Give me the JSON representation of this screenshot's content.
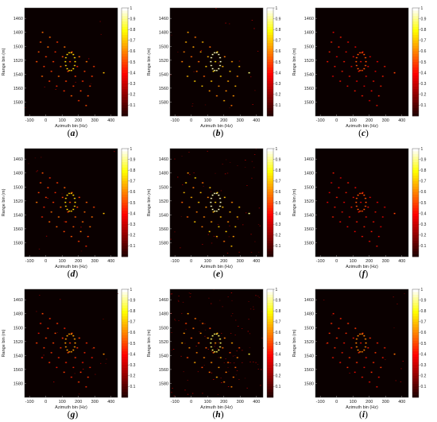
{
  "figure": {
    "background": "#ffffff",
    "plot_background": "#0a0000",
    "colormap": "hot"
  },
  "chart_data": [
    {
      "type": "heatmap",
      "panel": "a",
      "caption_letter": "a",
      "xlabel": "Azimuth bin (Hz)",
      "ylabel": "Range bin (m)",
      "xlim": [
        -130,
        440
      ],
      "ylim": [
        1445,
        1600
      ],
      "xticks": [
        "-100",
        "0",
        "100",
        "200",
        "300",
        "400"
      ],
      "yticks": [
        "1460",
        "1480",
        "1500",
        "1520",
        "1540",
        "1560",
        "1580"
      ],
      "colorbar": {
        "min": 0,
        "max": 1,
        "ticks": [
          "0.1",
          "0.2",
          "0.3",
          "0.4",
          "0.5",
          "0.6",
          "0.7",
          "0.8",
          "0.9",
          "1"
        ]
      },
      "intensity": 0.75,
      "noise": 0.02
    },
    {
      "type": "heatmap",
      "panel": "b",
      "caption_letter": "b",
      "xlabel": "Azimuth bin (Hz)",
      "ylabel": "Range bin (m)",
      "xlim": [
        -130,
        440
      ],
      "ylim": [
        1445,
        1600
      ],
      "xticks": [
        "-100",
        "0",
        "100",
        "200",
        "300",
        "400"
      ],
      "yticks": [
        "1460",
        "1480",
        "1500",
        "1520",
        "1540",
        "1560",
        "1580"
      ],
      "colorbar": {
        "min": 0,
        "max": 1,
        "ticks": [
          "0.1",
          "0.2",
          "0.3",
          "0.4",
          "0.5",
          "0.6",
          "0.7",
          "0.8",
          "0.9",
          "1"
        ]
      },
      "intensity": 1.0,
      "noise": 0.05
    },
    {
      "type": "heatmap",
      "panel": "c",
      "caption_letter": "c",
      "xlabel": "Azimuth bin (Hz)",
      "ylabel": "Range bin (m)",
      "xlim": [
        -130,
        440
      ],
      "ylim": [
        1445,
        1600
      ],
      "xticks": [
        "-100",
        "0",
        "100",
        "200",
        "300",
        "400"
      ],
      "yticks": [
        "1460",
        "1480",
        "1500",
        "1520",
        "1540",
        "1560",
        "1580"
      ],
      "colorbar": {
        "min": 0,
        "max": 1,
        "ticks": [
          "0.1",
          "0.2",
          "0.3",
          "0.4",
          "0.5",
          "0.6",
          "0.7",
          "0.8",
          "0.9",
          "1"
        ]
      },
      "intensity": 0.5,
      "noise": 0.0
    },
    {
      "type": "heatmap",
      "panel": "d",
      "caption_letter": "d",
      "xlabel": "Azimuth bin (Hz)",
      "ylabel": "Range bin (m)",
      "xlim": [
        -130,
        440
      ],
      "ylim": [
        1445,
        1600
      ],
      "xticks": [
        "-100",
        "0",
        "100",
        "200",
        "300",
        "400"
      ],
      "yticks": [
        "1460",
        "1480",
        "1500",
        "1520",
        "1540",
        "1560",
        "1580"
      ],
      "colorbar": {
        "min": 0,
        "max": 1,
        "ticks": [
          "0.1",
          "0.2",
          "0.3",
          "0.4",
          "0.5",
          "0.6",
          "0.7",
          "0.8",
          "0.9",
          "1"
        ]
      },
      "intensity": 0.75,
      "noise": 0.03
    },
    {
      "type": "heatmap",
      "panel": "e",
      "caption_letter": "e",
      "xlabel": "Azimuth bin (Hz)",
      "ylabel": "Range bin (m)",
      "xlim": [
        -130,
        440
      ],
      "ylim": [
        1445,
        1600
      ],
      "xticks": [
        "-100",
        "0",
        "100",
        "200",
        "300",
        "400"
      ],
      "yticks": [
        "1460",
        "1480",
        "1500",
        "1520",
        "1540",
        "1560",
        "1580"
      ],
      "colorbar": {
        "min": 0,
        "max": 1,
        "ticks": [
          "0.1",
          "0.2",
          "0.3",
          "0.4",
          "0.5",
          "0.6",
          "0.7",
          "0.8",
          "0.9",
          "1"
        ]
      },
      "intensity": 1.0,
      "noise": 0.12
    },
    {
      "type": "heatmap",
      "panel": "f",
      "caption_letter": "f",
      "xlabel": "Azimuth bin (Hz)",
      "ylabel": "Range bin (m)",
      "xlim": [
        -130,
        440
      ],
      "ylim": [
        1445,
        1600
      ],
      "xticks": [
        "-100",
        "0",
        "100",
        "200",
        "300",
        "400"
      ],
      "yticks": [
        "1460",
        "1480",
        "1500",
        "1520",
        "1540",
        "1560",
        "1580"
      ],
      "colorbar": {
        "min": 0,
        "max": 1,
        "ticks": [
          "0.1",
          "0.2",
          "0.3",
          "0.4",
          "0.5",
          "0.6",
          "0.7",
          "0.8",
          "0.9",
          "1"
        ]
      },
      "intensity": 0.5,
      "noise": 0.0
    },
    {
      "type": "heatmap",
      "panel": "g",
      "caption_letter": "g",
      "xlabel": "Azimuth bin (Hz)",
      "ylabel": "Range bin (m)",
      "xlim": [
        -130,
        440
      ],
      "ylim": [
        1445,
        1600
      ],
      "xticks": [
        "-100",
        "0",
        "100",
        "200",
        "300",
        "400"
      ],
      "yticks": [
        "1460",
        "1480",
        "1500",
        "1520",
        "1540",
        "1560",
        "1580"
      ],
      "colorbar": {
        "min": 0,
        "max": 1,
        "ticks": [
          "0.1",
          "0.2",
          "0.3",
          "0.4",
          "0.5",
          "0.6",
          "0.7",
          "0.8",
          "0.9",
          "1"
        ]
      },
      "intensity": 0.65,
      "noise": 0.04
    },
    {
      "type": "heatmap",
      "panel": "h",
      "caption_letter": "h",
      "xlabel": "Azimuth bin (Hz)",
      "ylabel": "Range bin (m)",
      "xlim": [
        -130,
        440
      ],
      "ylim": [
        1445,
        1600
      ],
      "xticks": [
        "-100",
        "0",
        "100",
        "200",
        "300",
        "400"
      ],
      "yticks": [
        "1460",
        "1480",
        "1500",
        "1520",
        "1540",
        "1560",
        "1580"
      ],
      "colorbar": {
        "min": 0,
        "max": 1,
        "ticks": [
          "0.1",
          "0.2",
          "0.3",
          "0.4",
          "0.5",
          "0.6",
          "0.7",
          "0.8",
          "0.9",
          "1"
        ]
      },
      "intensity": 0.9,
      "noise": 0.25
    },
    {
      "type": "heatmap",
      "panel": "i",
      "caption_letter": "i",
      "xlabel": "Azimuth bin (Hz)",
      "ylabel": "Range bin (m)",
      "xlim": [
        -130,
        440
      ],
      "ylim": [
        1445,
        1600
      ],
      "xticks": [
        "-100",
        "0",
        "100",
        "200",
        "300",
        "400"
      ],
      "yticks": [
        "1460",
        "1480",
        "1500",
        "1520",
        "1540",
        "1560",
        "1580"
      ],
      "colorbar": {
        "min": 0,
        "max": 1,
        "ticks": [
          "0.1",
          "0.2",
          "0.3",
          "0.4",
          "0.5",
          "0.6",
          "0.7",
          "0.8",
          "0.9",
          "1"
        ]
      },
      "intensity": 0.6,
      "noise": 0.03
    }
  ]
}
